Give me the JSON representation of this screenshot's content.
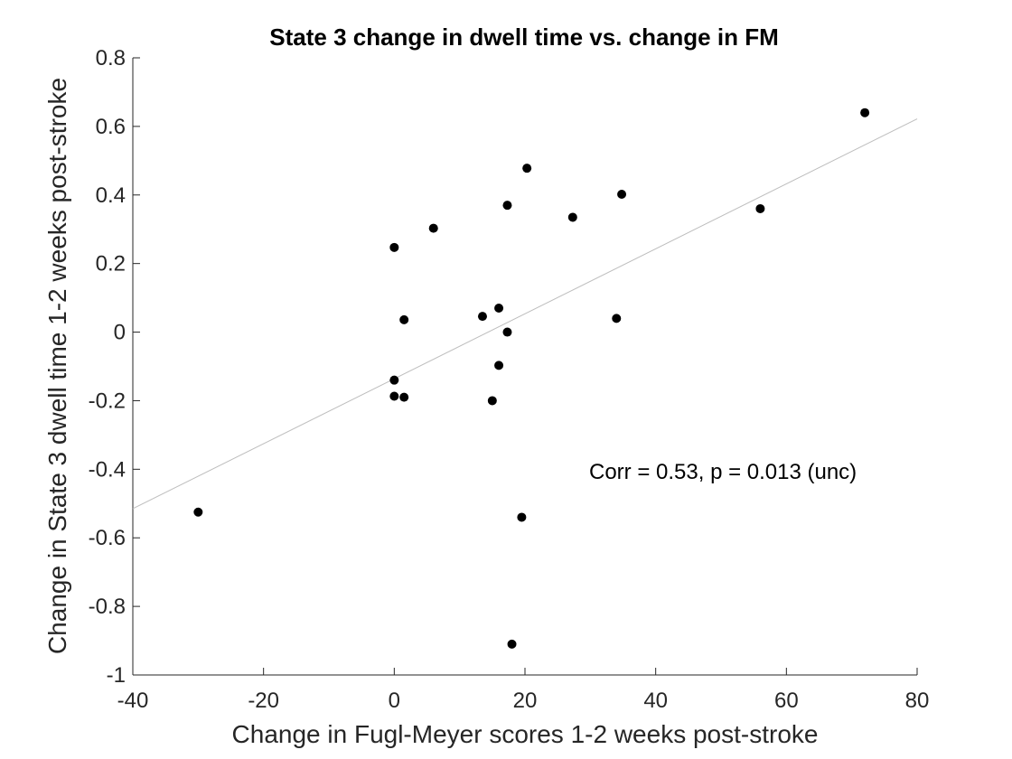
{
  "chart_data": {
    "type": "scatter",
    "title": "State 3 change in dwell time vs. change in FM",
    "xlabel": "Change in Fugl-Meyer scores 1-2 weeks post-stroke",
    "ylabel": "Change in State 3 dwell time 1-2 weeks post-stroke",
    "xlim": [
      -40,
      80
    ],
    "ylim": [
      -1,
      0.8
    ],
    "xticks": [
      -40,
      -20,
      0,
      20,
      40,
      60,
      80
    ],
    "yticks": [
      -1,
      -0.8,
      -0.6,
      -0.4,
      -0.2,
      0,
      0.2,
      0.4,
      0.6,
      0.8
    ],
    "xtick_labels": [
      "-40",
      "-20",
      "0",
      "20",
      "40",
      "60",
      "80"
    ],
    "ytick_labels": [
      "-1",
      "-0.8",
      "-0.6",
      "-0.4",
      "-0.2",
      "0",
      "0.2",
      "0.4",
      "0.6",
      "0.8"
    ],
    "grid": false,
    "points": [
      {
        "x": -30,
        "y": -0.525
      },
      {
        "x": 0,
        "y": 0.247
      },
      {
        "x": 0,
        "y": -0.14
      },
      {
        "x": 0,
        "y": -0.187
      },
      {
        "x": 1.5,
        "y": 0.036
      },
      {
        "x": 1.5,
        "y": -0.19
      },
      {
        "x": 6,
        "y": 0.303
      },
      {
        "x": 13.5,
        "y": 0.046
      },
      {
        "x": 15,
        "y": -0.2
      },
      {
        "x": 16,
        "y": 0.07
      },
      {
        "x": 16,
        "y": -0.097
      },
      {
        "x": 17.3,
        "y": 0.37
      },
      {
        "x": 17.3,
        "y": 0.0
      },
      {
        "x": 18,
        "y": -0.91
      },
      {
        "x": 19.5,
        "y": -0.54
      },
      {
        "x": 20.3,
        "y": 0.478
      },
      {
        "x": 27.3,
        "y": 0.335
      },
      {
        "x": 34,
        "y": 0.04
      },
      {
        "x": 34.8,
        "y": 0.402
      },
      {
        "x": 56,
        "y": 0.36
      },
      {
        "x": 72,
        "y": 0.64
      }
    ],
    "fit_line": {
      "x": [
        -40,
        80
      ],
      "y": [
        -0.515,
        0.622
      ]
    },
    "annotation": "Corr = 0.53, p = 0.013 (unc)"
  }
}
